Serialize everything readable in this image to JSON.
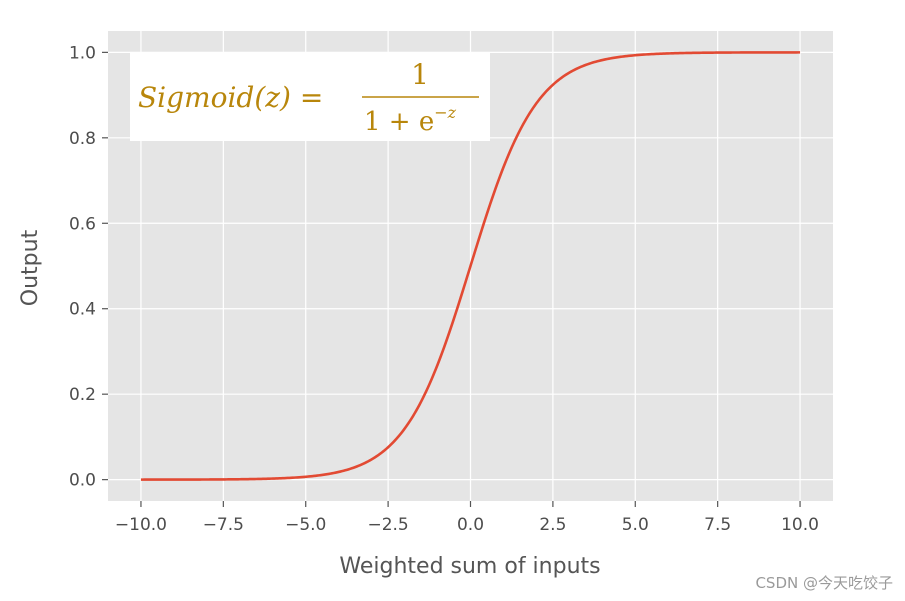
{
  "chart_data": {
    "type": "line",
    "title": "",
    "xlabel": "Weighted sum of inputs",
    "ylabel": "Output",
    "xlim": [
      -11,
      11
    ],
    "ylim": [
      -0.05,
      1.05
    ],
    "xticks": [
      -10.0,
      -7.5,
      -5.0,
      -2.5,
      0.0,
      2.5,
      5.0,
      7.5,
      10.0
    ],
    "xtick_labels": [
      "−10.0",
      "−7.5",
      "−5.0",
      "−2.5",
      "0.0",
      "2.5",
      "5.0",
      "7.5",
      "10.0"
    ],
    "yticks": [
      0.0,
      0.2,
      0.4,
      0.6,
      0.8,
      1.0
    ],
    "ytick_labels": [
      "0.0",
      "0.2",
      "0.4",
      "0.6",
      "0.8",
      "1.0"
    ],
    "grid": true,
    "series": [
      {
        "function": "sigmoid",
        "x_range": [
          -10,
          10
        ],
        "color": "#e24a33"
      }
    ],
    "annotation": {
      "lhs": "Sigmoid(z) =",
      "numerator": "1",
      "denominator_base": "1 + e",
      "denominator_exp": "−z",
      "color": "#b8860b",
      "position": "top-left"
    },
    "background_color": "#e5e5e5",
    "grid_color": "#ffffff"
  },
  "watermark": "CSDN @今天吃饺子"
}
